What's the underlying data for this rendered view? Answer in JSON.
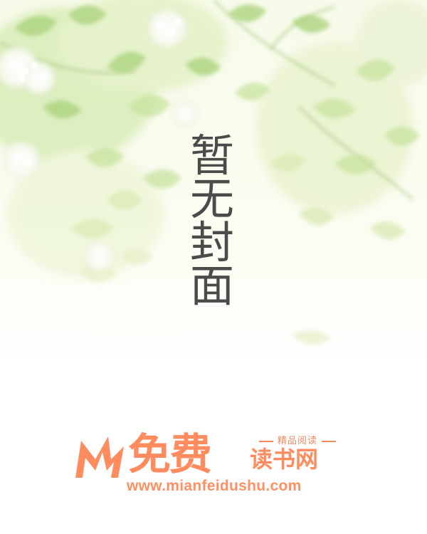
{
  "cover": {
    "title_chars": [
      "暂",
      "无",
      "封",
      "面"
    ]
  },
  "logo": {
    "brand_main": "免费",
    "brand_sub": "读书网",
    "tagline": "精品阅读",
    "url": "www.mianfeidushu.com",
    "accent_color": "#ff8c5f"
  },
  "decoration": {
    "theme": "green-leaves-and-white-flowers",
    "leaf_color": "#b9dc8e",
    "flower_color": "#ffffff"
  }
}
